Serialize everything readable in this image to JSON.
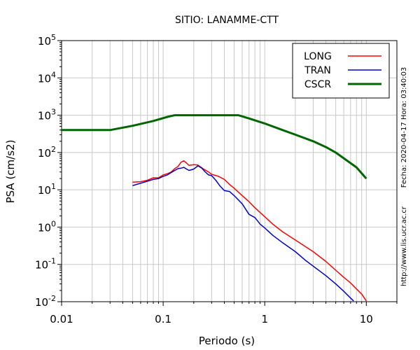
{
  "chart_data": {
    "type": "line",
    "title": "SITIO: LANAMME-CTT",
    "xlabel": "Periodo (s)",
    "ylabel": "PSA (cm/s2)",
    "x_scale": "log",
    "y_scale": "log",
    "xlim": [
      0.01,
      20
    ],
    "ylim": [
      0.01,
      100000
    ],
    "grid": true,
    "x_ticks": [
      {
        "value": 0.01,
        "label": "0.01"
      },
      {
        "value": 0.1,
        "label": "0.1"
      },
      {
        "value": 1,
        "label": "1"
      },
      {
        "value": 10,
        "label": "10"
      }
    ],
    "y_ticks": [
      {
        "value": 0.01,
        "base": "10",
        "exp": "-2"
      },
      {
        "value": 0.1,
        "base": "10",
        "exp": "-1"
      },
      {
        "value": 1,
        "base": "10",
        "exp": "0"
      },
      {
        "value": 10,
        "base": "10",
        "exp": "1"
      },
      {
        "value": 100,
        "base": "10",
        "exp": "2"
      },
      {
        "value": 1000,
        "base": "10",
        "exp": "3"
      },
      {
        "value": 10000,
        "base": "10",
        "exp": "4"
      },
      {
        "value": 100000,
        "base": "10",
        "exp": "5"
      }
    ],
    "legend_position": "top-right",
    "series": [
      {
        "name": "LONG",
        "color": "#ff0000",
        "points": [
          [
            0.05,
            16
          ],
          [
            0.06,
            16.5
          ],
          [
            0.07,
            18
          ],
          [
            0.08,
            21
          ],
          [
            0.09,
            21
          ],
          [
            0.1,
            25
          ],
          [
            0.11,
            27
          ],
          [
            0.12,
            30
          ],
          [
            0.13,
            37
          ],
          [
            0.14,
            42
          ],
          [
            0.15,
            55
          ],
          [
            0.16,
            60
          ],
          [
            0.17,
            52
          ],
          [
            0.18,
            45
          ],
          [
            0.2,
            47
          ],
          [
            0.22,
            46
          ],
          [
            0.25,
            36
          ],
          [
            0.28,
            30
          ],
          [
            0.3,
            26
          ],
          [
            0.35,
            23
          ],
          [
            0.4,
            19
          ],
          [
            0.45,
            14
          ],
          [
            0.5,
            11
          ],
          [
            0.6,
            7
          ],
          [
            0.7,
            4.8
          ],
          [
            0.8,
            3.3
          ],
          [
            1,
            1.9
          ],
          [
            1.2,
            1.2
          ],
          [
            1.5,
            0.75
          ],
          [
            2,
            0.45
          ],
          [
            3,
            0.22
          ],
          [
            4,
            0.12
          ],
          [
            5,
            0.07
          ],
          [
            6,
            0.045
          ],
          [
            7,
            0.032
          ],
          [
            8,
            0.022
          ],
          [
            9,
            0.016
          ],
          [
            10,
            0.0105
          ]
        ]
      },
      {
        "name": "TRAN",
        "color": "#0000cc",
        "points": [
          [
            0.05,
            13
          ],
          [
            0.06,
            15
          ],
          [
            0.07,
            17
          ],
          [
            0.08,
            19
          ],
          [
            0.09,
            20
          ],
          [
            0.1,
            23
          ],
          [
            0.11,
            25
          ],
          [
            0.12,
            29
          ],
          [
            0.13,
            33
          ],
          [
            0.14,
            37
          ],
          [
            0.15,
            38
          ],
          [
            0.16,
            40
          ],
          [
            0.17,
            36
          ],
          [
            0.18,
            33
          ],
          [
            0.2,
            36
          ],
          [
            0.22,
            44
          ],
          [
            0.24,
            38
          ],
          [
            0.26,
            30
          ],
          [
            0.28,
            25
          ],
          [
            0.3,
            24
          ],
          [
            0.33,
            18
          ],
          [
            0.36,
            13
          ],
          [
            0.4,
            9.5
          ],
          [
            0.45,
            9
          ],
          [
            0.5,
            7
          ],
          [
            0.6,
            4.2
          ],
          [
            0.7,
            2.2
          ],
          [
            0.8,
            1.8
          ],
          [
            0.9,
            1.2
          ],
          [
            1,
            0.95
          ],
          [
            1.2,
            0.6
          ],
          [
            1.5,
            0.38
          ],
          [
            2,
            0.22
          ],
          [
            2.5,
            0.13
          ],
          [
            3,
            0.09
          ],
          [
            4,
            0.05
          ],
          [
            5,
            0.03
          ],
          [
            6,
            0.019
          ],
          [
            7,
            0.0125
          ],
          [
            7.5,
            0.0105
          ]
        ]
      },
      {
        "name": "CSCR",
        "color": "#006600",
        "points": [
          [
            0.01,
            400
          ],
          [
            0.03,
            400
          ],
          [
            0.05,
            520
          ],
          [
            0.08,
            700
          ],
          [
            0.11,
            900
          ],
          [
            0.13,
            1000
          ],
          [
            0.55,
            1000
          ],
          [
            0.7,
            820
          ],
          [
            1,
            600
          ],
          [
            1.5,
            400
          ],
          [
            2,
            300
          ],
          [
            3,
            200
          ],
          [
            4,
            140
          ],
          [
            5,
            100
          ],
          [
            6,
            70
          ],
          [
            8,
            40
          ],
          [
            10,
            20
          ]
        ]
      }
    ]
  },
  "side_text": {
    "timestamp": "Fecha: 2020-04-17 Hora: 03:40:03",
    "url": "http://www.lis.ucr.ac.cr"
  }
}
